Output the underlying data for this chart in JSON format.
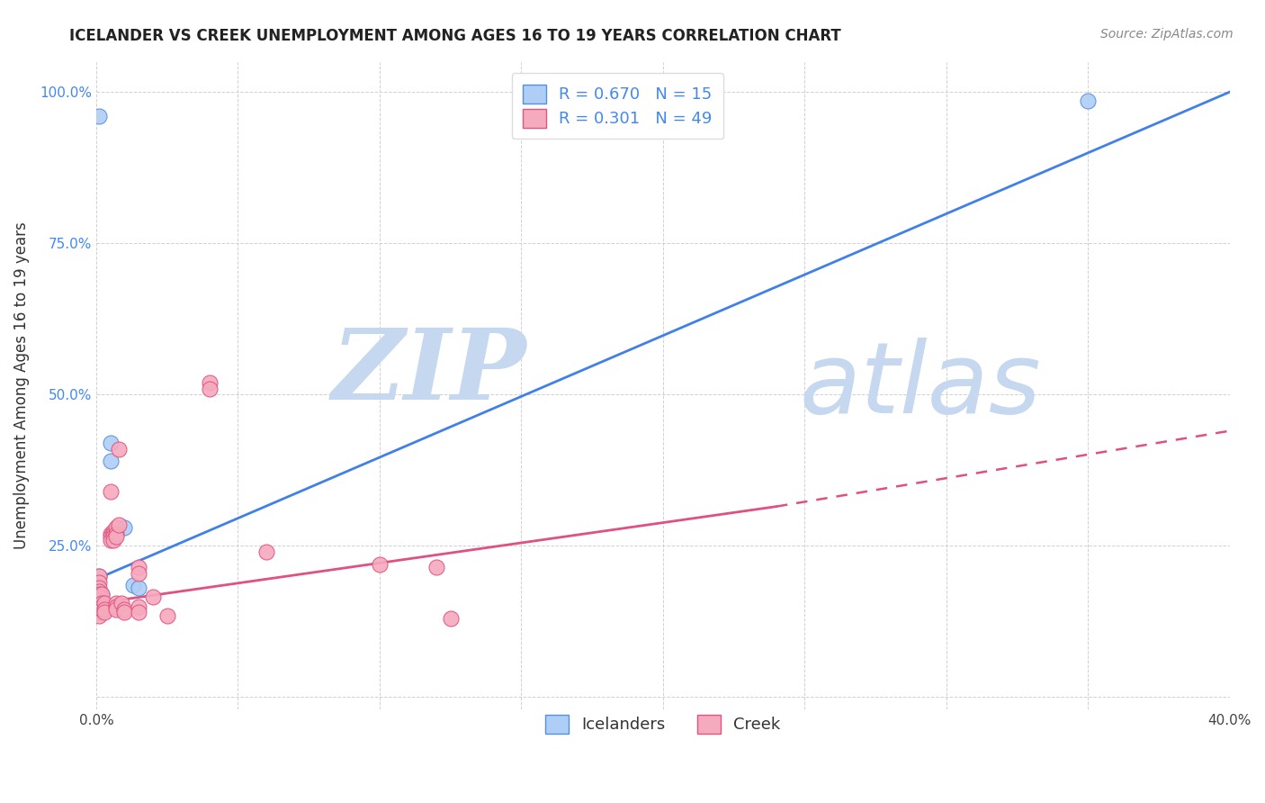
{
  "title": "ICELANDER VS CREEK UNEMPLOYMENT AMONG AGES 16 TO 19 YEARS CORRELATION CHART",
  "source": "Source: ZipAtlas.com",
  "ylabel": "Unemployment Among Ages 16 to 19 years",
  "xlim": [
    0.0,
    0.4
  ],
  "ylim": [
    -0.02,
    1.05
  ],
  "xticks": [
    0.0,
    0.05,
    0.1,
    0.15,
    0.2,
    0.25,
    0.3,
    0.35,
    0.4
  ],
  "yticks": [
    0.0,
    0.25,
    0.5,
    0.75,
    1.0
  ],
  "icelander_R": 0.67,
  "icelander_N": 15,
  "creek_R": 0.301,
  "creek_N": 49,
  "icelander_color": "#aecef5",
  "creek_color": "#f5aabe",
  "icelander_edge_color": "#5590e0",
  "creek_edge_color": "#e05580",
  "icelander_line_color": "#4080e8",
  "creek_line_color": "#e05080",
  "watermark_zip": "ZIP",
  "watermark_atlas": "atlas",
  "watermark_color_zip": "#c8daf5",
  "watermark_color_atlas": "#c8daf5",
  "icelander_dots": [
    [
      0.001,
      0.96
    ],
    [
      0.001,
      0.2
    ],
    [
      0.001,
      0.175
    ],
    [
      0.001,
      0.16
    ],
    [
      0.001,
      0.155
    ],
    [
      0.002,
      0.17
    ],
    [
      0.002,
      0.16
    ],
    [
      0.003,
      0.15
    ],
    [
      0.003,
      0.145
    ],
    [
      0.005,
      0.42
    ],
    [
      0.005,
      0.39
    ],
    [
      0.01,
      0.28
    ],
    [
      0.013,
      0.185
    ],
    [
      0.015,
      0.18
    ],
    [
      0.35,
      0.985
    ]
  ],
  "creek_dots": [
    [
      0.001,
      0.2
    ],
    [
      0.001,
      0.19
    ],
    [
      0.001,
      0.18
    ],
    [
      0.001,
      0.175
    ],
    [
      0.001,
      0.17
    ],
    [
      0.001,
      0.165
    ],
    [
      0.001,
      0.16
    ],
    [
      0.001,
      0.155
    ],
    [
      0.001,
      0.15
    ],
    [
      0.001,
      0.14
    ],
    [
      0.001,
      0.135
    ],
    [
      0.002,
      0.17
    ],
    [
      0.002,
      0.155
    ],
    [
      0.002,
      0.15
    ],
    [
      0.002,
      0.145
    ],
    [
      0.003,
      0.155
    ],
    [
      0.003,
      0.145
    ],
    [
      0.003,
      0.14
    ],
    [
      0.005,
      0.34
    ],
    [
      0.005,
      0.27
    ],
    [
      0.005,
      0.265
    ],
    [
      0.005,
      0.26
    ],
    [
      0.006,
      0.275
    ],
    [
      0.006,
      0.27
    ],
    [
      0.006,
      0.265
    ],
    [
      0.006,
      0.26
    ],
    [
      0.007,
      0.28
    ],
    [
      0.007,
      0.27
    ],
    [
      0.007,
      0.265
    ],
    [
      0.007,
      0.155
    ],
    [
      0.007,
      0.15
    ],
    [
      0.007,
      0.145
    ],
    [
      0.008,
      0.41
    ],
    [
      0.008,
      0.285
    ],
    [
      0.009,
      0.155
    ],
    [
      0.01,
      0.145
    ],
    [
      0.01,
      0.14
    ],
    [
      0.015,
      0.215
    ],
    [
      0.015,
      0.205
    ],
    [
      0.015,
      0.15
    ],
    [
      0.015,
      0.14
    ],
    [
      0.02,
      0.165
    ],
    [
      0.025,
      0.135
    ],
    [
      0.04,
      0.52
    ],
    [
      0.04,
      0.51
    ],
    [
      0.06,
      0.24
    ],
    [
      0.1,
      0.22
    ],
    [
      0.12,
      0.215
    ],
    [
      0.125,
      0.13
    ]
  ],
  "icelander_line": {
    "x0": 0.0,
    "y0": 0.195,
    "x1": 0.4,
    "y1": 1.0
  },
  "creek_line_solid": {
    "x0": 0.0,
    "y0": 0.155,
    "x1": 0.24,
    "y1": 0.315
  },
  "creek_line_dashed": {
    "x0": 0.24,
    "y0": 0.315,
    "x1": 0.4,
    "y1": 0.44
  }
}
